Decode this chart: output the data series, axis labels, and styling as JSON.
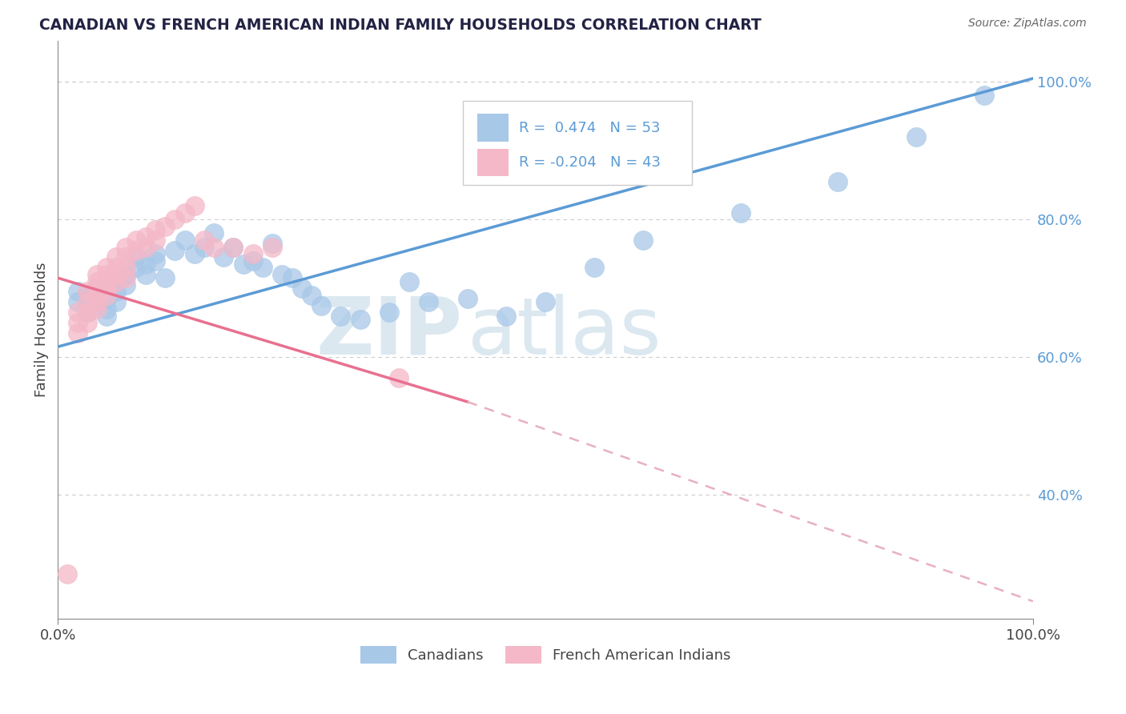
{
  "title": "CANADIAN VS FRENCH AMERICAN INDIAN FAMILY HOUSEHOLDS CORRELATION CHART",
  "source": "Source: ZipAtlas.com",
  "ylabel": "Family Households",
  "R1": 0.474,
  "N1": 53,
  "R2": -0.204,
  "N2": 43,
  "color1": "#a8c8e8",
  "color2": "#f4b8c8",
  "line1_color": "#5b9bd5",
  "line2_solid_color": "#e87090",
  "line2_dash_color": "#e8b0c0",
  "legend_label1": "Canadians",
  "legend_label2": "French American Indians",
  "background_color": "#ffffff",
  "grid_color": "#cccccc",
  "title_color": "#222244",
  "watermark_color": "#dce8f0",
  "ytick_color": "#5b9bd5",
  "canadians_x": [
    0.02,
    0.02,
    0.03,
    0.03,
    0.03,
    0.04,
    0.04,
    0.05,
    0.05,
    0.05,
    0.05,
    0.06,
    0.06,
    0.06,
    0.07,
    0.07,
    0.08,
    0.08,
    0.09,
    0.09,
    0.1,
    0.1,
    0.11,
    0.12,
    0.13,
    0.14,
    0.15,
    0.16,
    0.17,
    0.18,
    0.19,
    0.2,
    0.21,
    0.22,
    0.23,
    0.24,
    0.25,
    0.26,
    0.27,
    0.29,
    0.31,
    0.34,
    0.36,
    0.38,
    0.42,
    0.46,
    0.5,
    0.55,
    0.6,
    0.7,
    0.8,
    0.88,
    0.95
  ],
  "canadians_y": [
    0.695,
    0.68,
    0.69,
    0.675,
    0.665,
    0.7,
    0.685,
    0.7,
    0.685,
    0.67,
    0.66,
    0.71,
    0.695,
    0.68,
    0.72,
    0.705,
    0.745,
    0.73,
    0.735,
    0.72,
    0.75,
    0.74,
    0.715,
    0.755,
    0.77,
    0.75,
    0.76,
    0.78,
    0.745,
    0.76,
    0.735,
    0.74,
    0.73,
    0.765,
    0.72,
    0.715,
    0.7,
    0.69,
    0.675,
    0.66,
    0.655,
    0.665,
    0.71,
    0.68,
    0.685,
    0.66,
    0.68,
    0.73,
    0.77,
    0.81,
    0.855,
    0.92,
    0.98
  ],
  "french_x": [
    0.01,
    0.02,
    0.02,
    0.02,
    0.03,
    0.03,
    0.03,
    0.03,
    0.04,
    0.04,
    0.04,
    0.04,
    0.04,
    0.04,
    0.05,
    0.05,
    0.05,
    0.05,
    0.05,
    0.06,
    0.06,
    0.06,
    0.06,
    0.07,
    0.07,
    0.07,
    0.07,
    0.08,
    0.08,
    0.09,
    0.09,
    0.1,
    0.1,
    0.11,
    0.12,
    0.13,
    0.14,
    0.15,
    0.16,
    0.18,
    0.2,
    0.22,
    0.35
  ],
  "french_y": [
    0.285,
    0.665,
    0.65,
    0.635,
    0.695,
    0.68,
    0.665,
    0.65,
    0.72,
    0.71,
    0.7,
    0.69,
    0.68,
    0.67,
    0.73,
    0.72,
    0.71,
    0.7,
    0.69,
    0.745,
    0.73,
    0.72,
    0.71,
    0.76,
    0.745,
    0.73,
    0.715,
    0.77,
    0.755,
    0.775,
    0.76,
    0.785,
    0.77,
    0.79,
    0.8,
    0.81,
    0.82,
    0.77,
    0.76,
    0.76,
    0.75,
    0.76,
    0.57
  ],
  "line1_x0": 0.0,
  "line1_y0": 0.615,
  "line1_x1": 1.0,
  "line1_y1": 1.005,
  "line2_x0": 0.0,
  "line2_y0": 0.715,
  "line2_solid_x1": 0.42,
  "line2_solid_y1": 0.535,
  "line2_dash_x1": 1.0,
  "line2_dash_y1": 0.245,
  "ymin": 0.22,
  "ymax": 1.06,
  "xmin": 0.0,
  "xmax": 1.0,
  "yticks": [
    0.4,
    0.6,
    0.8,
    1.0
  ],
  "ytick_labels": [
    "40.0%",
    "60.0%",
    "80.0%",
    "100.0%"
  ],
  "xtick_labels": [
    "0.0%",
    "100.0%"
  ]
}
